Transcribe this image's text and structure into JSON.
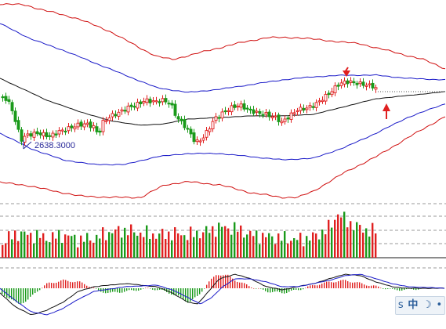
{
  "chart_data": [
    {
      "type": "candlestick",
      "panel": "price",
      "overlays": [
        "upper-envelope-outer",
        "upper-envelope-inner",
        "moving-average",
        "lower-envelope-inner",
        "lower-envelope-outer"
      ],
      "annotation": {
        "low_label": "2638.3000"
      },
      "markers": [
        {
          "kind": "down-arrow",
          "color": "#e02020"
        },
        {
          "kind": "up-arrow",
          "color": "#e02020"
        }
      ],
      "grid": false
    },
    {
      "type": "bar",
      "panel": "volume",
      "grid": "dashed-horizontal"
    },
    {
      "type": "macd",
      "panel": "oscillator",
      "lines": [
        "fast",
        "slow"
      ],
      "histogram_colors": {
        "positive": "#e02020",
        "negative": "#1a9a1a"
      }
    }
  ],
  "colors": {
    "up": "#e02020",
    "down": "#1a9a1a",
    "outer_band": "#d01010",
    "inner_band": "#1a1ac8",
    "average": "#111111",
    "fast_line": "#111111",
    "slow_line": "#1a1ac8"
  },
  "toolbar": {
    "icon": "s",
    "ime": "中",
    "moon": "☽",
    "dot": "•"
  }
}
